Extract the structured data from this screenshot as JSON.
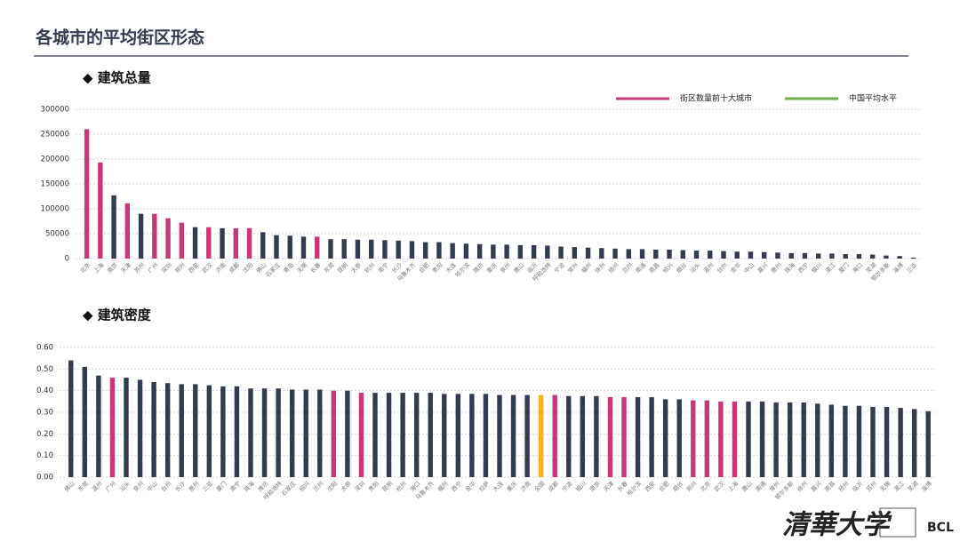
{
  "title": "各城市的平均街区形态",
  "footer": {
    "logo_text": "清華大学",
    "lab": "BCL"
  },
  "chart_data": [
    {
      "type": "bar",
      "subtitle": "◆ 建筑总量",
      "categories": [
        "北京",
        "上海",
        "南京",
        "天津",
        "苏州",
        "广州",
        "深圳",
        "郑州",
        "西安",
        "武汉",
        "济南",
        "成都",
        "沈阳",
        "佛山",
        "石家庄",
        "青岛",
        "无锡",
        "长春",
        "东莞",
        "昆明",
        "太原",
        "杭州",
        "南宁",
        "长沙",
        "乌鲁木齐",
        "合肥",
        "贵阳",
        "大连",
        "哈尔滨",
        "潍坊",
        "重庆",
        "泉州",
        "唐山",
        "临沂",
        "呼和浩特",
        "宁波",
        "常州",
        "福州",
        "徐州",
        "扬州",
        "兰州",
        "南通",
        "南昌",
        "绍兴",
        "烟台",
        "汕头",
        "温州",
        "台州",
        "金华",
        "中山",
        "嘉兴",
        "惠州",
        "珠海",
        "西宁",
        "银川",
        "湛江",
        "厦门",
        "海口",
        "芜湖",
        "鄂尔多斯",
        "淄博",
        "三亚"
      ],
      "values": [
        260000,
        193000,
        127000,
        111000,
        90000,
        90000,
        81000,
        72000,
        63000,
        63000,
        61000,
        61000,
        61000,
        53000,
        47000,
        46000,
        44000,
        44000,
        39000,
        39000,
        38000,
        38000,
        37000,
        36000,
        35000,
        33000,
        33000,
        31000,
        30000,
        29000,
        28000,
        28000,
        27000,
        27000,
        26000,
        24000,
        23000,
        22000,
        21000,
        20000,
        19000,
        19000,
        18000,
        18000,
        17000,
        16000,
        16000,
        15000,
        14000,
        14000,
        13000,
        12000,
        11000,
        11000,
        10000,
        10000,
        9000,
        9000,
        8000,
        6000,
        5000,
        2000
      ],
      "color": "#333c4e",
      "highlight_color": "#c8377a",
      "highlight_indices": [
        0,
        1,
        3,
        5,
        6,
        7,
        9,
        11,
        12,
        17
      ],
      "ylim": [
        0,
        300000
      ],
      "yticks": [
        0,
        50000,
        100000,
        150000,
        200000,
        250000,
        300000
      ],
      "grid": true,
      "legend": [
        {
          "name": "街区数量前十大城市",
          "color": "#c8377a"
        },
        {
          "name": "中国平均水平",
          "color": "#70ad47"
        }
      ],
      "legend_position": "upper right"
    },
    {
      "type": "bar",
      "subtitle": "◆ 建筑密度",
      "categories": [
        "佛山",
        "东莞",
        "温州",
        "广州",
        "汕头",
        "泉州",
        "中山",
        "台州",
        "长沙",
        "惠州",
        "三亚",
        "厦门",
        "南宁",
        "珠海",
        "潍坊",
        "呼和浩特",
        "石家庄",
        "绍兴",
        "兰州",
        "沈阳",
        "太原",
        "深圳",
        "贵阳",
        "昆明",
        "杭州",
        "海口",
        "乌鲁木齐",
        "福州",
        "西宁",
        "金华",
        "拉萨",
        "大连",
        "重庆",
        "济南",
        "全国",
        "成都",
        "宁波",
        "银川",
        "南京",
        "天津",
        "长春",
        "哈尔滨",
        "西安",
        "合肥",
        "烟台",
        "郑州",
        "北京",
        "武汉",
        "上海",
        "唐山",
        "南通",
        "常州",
        "鄂尔多斯",
        "徐州",
        "嘉兴",
        "南昌",
        "扬州",
        "临沂",
        "苏州",
        "无锡",
        "湛江",
        "芜湖",
        "淄博"
      ],
      "values": [
        0.54,
        0.51,
        0.47,
        0.46,
        0.46,
        0.45,
        0.44,
        0.435,
        0.43,
        0.43,
        0.425,
        0.42,
        0.42,
        0.41,
        0.41,
        0.41,
        0.405,
        0.405,
        0.405,
        0.4,
        0.4,
        0.39,
        0.39,
        0.39,
        0.39,
        0.39,
        0.39,
        0.385,
        0.385,
        0.385,
        0.385,
        0.38,
        0.38,
        0.38,
        0.38,
        0.38,
        0.375,
        0.375,
        0.375,
        0.37,
        0.37,
        0.37,
        0.37,
        0.36,
        0.36,
        0.355,
        0.355,
        0.35,
        0.35,
        0.35,
        0.35,
        0.345,
        0.345,
        0.345,
        0.34,
        0.335,
        0.33,
        0.33,
        0.325,
        0.325,
        0.32,
        0.315,
        0.305
      ],
      "color": "#333c4e",
      "highlight_color": "#c8377a",
      "highlight_indices": [
        3,
        19,
        21,
        35,
        39,
        40,
        45,
        46,
        47,
        48
      ],
      "average_color": "#f5b324",
      "average_indices": [
        34
      ],
      "ylim": [
        0,
        0.6
      ],
      "yticks": [
        {
          "value": 0,
          "label": "0.00"
        },
        {
          "value": 0.1,
          "label": "0.10"
        },
        {
          "value": 0.2,
          "label": "0.20"
        },
        {
          "value": 0.3,
          "label": "0.30"
        },
        {
          "value": 0.4,
          "label": "0.40"
        },
        {
          "value": 0.5,
          "label": "0.50"
        },
        {
          "value": 0.6,
          "label": "0.60"
        }
      ],
      "grid": true
    }
  ]
}
